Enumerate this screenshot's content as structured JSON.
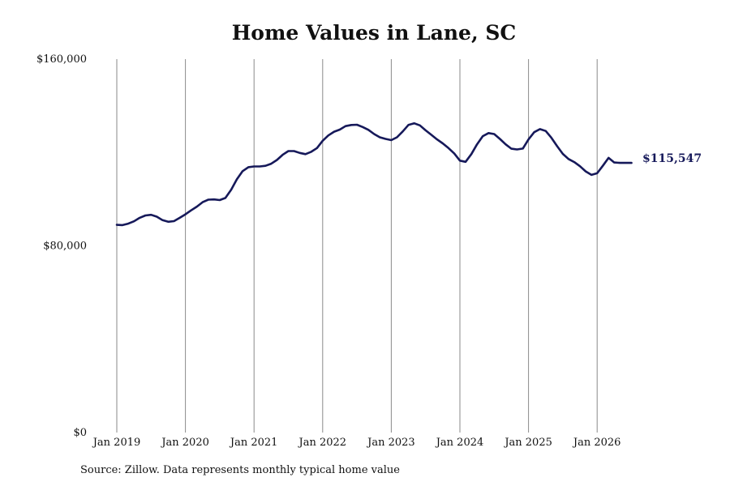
{
  "title": "Home Values in Lane, SC",
  "source": "Source: Zillow. Data represents monthly typical home value",
  "chart_data": {
    "type": "line",
    "title": "Home Values in Lane, SC",
    "xlabel": "",
    "ylabel": "",
    "ylim": [
      0,
      160000
    ],
    "y_ticks": [
      {
        "value": 0,
        "label": "$0"
      },
      {
        "value": 80000,
        "label": "$80,000"
      },
      {
        "value": 160000,
        "label": "$160,000"
      }
    ],
    "x_ticks": [
      {
        "value": 2019,
        "label": "Jan 2019"
      },
      {
        "value": 2020,
        "label": "Jan 2020"
      },
      {
        "value": 2021,
        "label": "Jan 2021"
      },
      {
        "value": 2022,
        "label": "Jan 2022"
      },
      {
        "value": 2023,
        "label": "Jan 2023"
      },
      {
        "value": 2024,
        "label": "Jan 2024"
      },
      {
        "value": 2025,
        "label": "Jan 2025"
      },
      {
        "value": 2026,
        "label": "Jan 2026"
      }
    ],
    "xlim": [
      2019,
      2026.5
    ],
    "grid": "vertical",
    "line_color": "#16195a",
    "end_label": "$115,547",
    "series": [
      {
        "x": [
          "Jan 2019",
          "Feb 2019",
          "Mar 2019",
          "Apr 2019",
          "May 2019",
          "Jun 2019",
          "Jul 2019",
          "Aug 2019",
          "Sep 2019",
          "Oct 2019",
          "Nov 2019",
          "Dec 2019",
          "Jan 2020",
          "Feb 2020",
          "Mar 2020",
          "Apr 2020",
          "May 2020",
          "Jun 2020",
          "Jul 2020",
          "Aug 2020",
          "Sep 2020",
          "Oct 2020",
          "Nov 2020",
          "Dec 2020",
          "Jan 2021",
          "Feb 2021",
          "Mar 2021",
          "Apr 2021",
          "May 2021",
          "Jun 2021",
          "Jul 2021",
          "Aug 2021",
          "Sep 2021",
          "Oct 2021",
          "Nov 2021",
          "Dec 2021",
          "Jan 2022",
          "Feb 2022",
          "Mar 2022",
          "Apr 2022",
          "May 2022",
          "Jun 2022",
          "Jul 2022",
          "Aug 2022",
          "Sep 2022",
          "Oct 2022",
          "Nov 2022",
          "Dec 2022",
          "Jan 2023",
          "Feb 2023",
          "Mar 2023",
          "Apr 2023",
          "May 2023",
          "Jun 2023",
          "Jul 2023",
          "Aug 2023",
          "Sep 2023",
          "Oct 2023",
          "Nov 2023",
          "Dec 2023",
          "Jan 2024",
          "Feb 2024",
          "Mar 2024",
          "Apr 2024",
          "May 2024",
          "Jun 2024",
          "Jul 2024",
          "Aug 2024",
          "Sep 2024",
          "Oct 2024",
          "Nov 2024",
          "Dec 2024",
          "Jan 2025",
          "Feb 2025",
          "Mar 2025",
          "Apr 2025",
          "May 2025",
          "Jun 2025",
          "Jul 2025",
          "Aug 2025",
          "Sep 2025",
          "Oct 2025",
          "Nov 2025",
          "Dec 2025",
          "Jan 2026",
          "Feb 2026",
          "Mar 2026",
          "Apr 2026",
          "May 2026",
          "Jun 2026",
          "Jul 2026"
        ],
        "values": [
          89000,
          88900,
          89500,
          90500,
          92000,
          93000,
          93300,
          92500,
          91000,
          90300,
          90600,
          92000,
          93500,
          95200,
          96800,
          98700,
          99800,
          99900,
          99600,
          100500,
          104000,
          108500,
          112000,
          113700,
          114000,
          114000,
          114300,
          115200,
          116800,
          119000,
          120600,
          120600,
          119800,
          119300,
          120300,
          121900,
          125000,
          127300,
          128900,
          129800,
          131300,
          131800,
          131900,
          130900,
          129700,
          127900,
          126500,
          125800,
          125300,
          126500,
          129000,
          131800,
          132500,
          131600,
          129500,
          127600,
          125600,
          123900,
          121900,
          119600,
          116500,
          116000,
          119300,
          123500,
          127000,
          128300,
          127900,
          125800,
          123500,
          121600,
          121300,
          121700,
          125600,
          128700,
          130000,
          129200,
          126300,
          122700,
          119400,
          117200,
          115900,
          114100,
          111900,
          110400,
          111100,
          114300,
          117700,
          115700,
          115547,
          115547,
          115547
        ]
      }
    ]
  }
}
